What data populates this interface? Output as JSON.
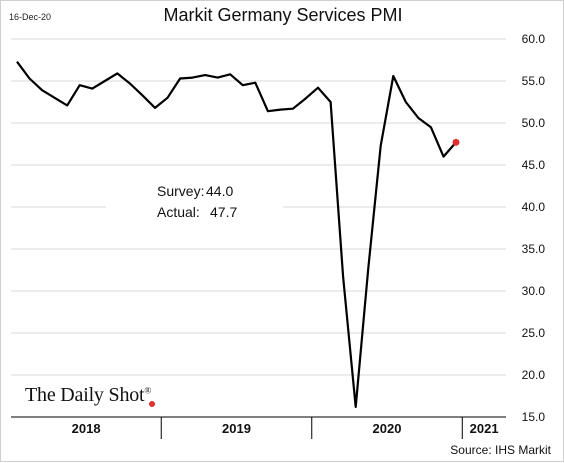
{
  "date_stamp": "16-Dec-20",
  "source": "Source: IHS Markit",
  "logo_text": "The Daily Shot",
  "colors": {
    "line": "#000000",
    "marker": "#e03030",
    "grid": "#d9d9d9"
  },
  "chart_data": {
    "type": "line",
    "title": "Markit Germany Services PMI",
    "xlabel": "",
    "ylabel": "",
    "ylim": [
      15,
      60
    ],
    "yticks": [
      "15.0",
      "20.0",
      "25.0",
      "30.0",
      "35.0",
      "40.0",
      "45.0",
      "50.0",
      "55.0",
      "60.0"
    ],
    "x_groups": [
      "2018",
      "2019",
      "2020",
      "2021"
    ],
    "grid": "horizontal",
    "annotations": [
      {
        "label": "Survey:",
        "value": "44.0"
      },
      {
        "label": "Actual:",
        "value": "47.7"
      }
    ],
    "x": [
      "2018-01",
      "2018-02",
      "2018-03",
      "2018-04",
      "2018-05",
      "2018-06",
      "2018-07",
      "2018-08",
      "2018-09",
      "2018-10",
      "2018-11",
      "2018-12",
      "2019-01",
      "2019-02",
      "2019-03",
      "2019-04",
      "2019-05",
      "2019-06",
      "2019-07",
      "2019-08",
      "2019-09",
      "2019-10",
      "2019-11",
      "2019-12",
      "2020-01",
      "2020-02",
      "2020-03",
      "2020-04",
      "2020-05",
      "2020-06",
      "2020-07",
      "2020-08",
      "2020-09",
      "2020-10",
      "2020-11",
      "2020-12"
    ],
    "values": [
      57.3,
      55.3,
      53.9,
      53.0,
      52.1,
      54.5,
      54.1,
      55.0,
      55.9,
      54.7,
      53.3,
      51.8,
      53.0,
      55.3,
      55.4,
      55.7,
      55.4,
      55.8,
      54.5,
      54.8,
      51.4,
      51.6,
      51.7,
      52.9,
      54.2,
      52.5,
      31.7,
      16.2,
      32.6,
      47.3,
      55.6,
      52.5,
      50.6,
      49.5,
      46.0,
      47.7
    ],
    "highlight_last_point": true
  }
}
